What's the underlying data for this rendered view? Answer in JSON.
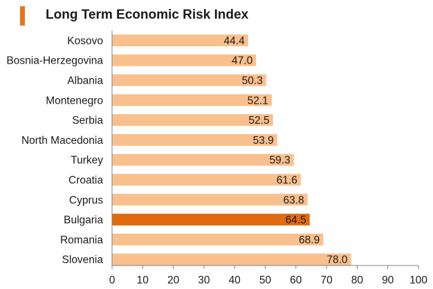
{
  "title": "Long Term Economic Risk Index",
  "colors": {
    "title_marker": "#e6731e",
    "bar": "#f9c08d",
    "highlight_bar": "#e26b0e",
    "axis": "#808080",
    "text": "#1a1a1a"
  },
  "chart_data": {
    "type": "bar",
    "orientation": "horizontal",
    "title": "Long Term Economic Risk Index",
    "categories": [
      "Kosovo",
      "Bosnia-Herzegovina",
      "Albania",
      "Montenegro",
      "Serbia",
      "North Macedonia",
      "Turkey",
      "Croatia",
      "Cyprus",
      "Bulgaria",
      "Romania",
      "Slovenia"
    ],
    "values": [
      44.4,
      47.0,
      50.3,
      52.1,
      52.5,
      53.9,
      59.3,
      61.6,
      63.8,
      64.5,
      68.9,
      78.0
    ],
    "value_labels": [
      "44.4",
      "47.0",
      "50.3",
      "52.1",
      "52.5",
      "53.9",
      "59.3",
      "61.6",
      "63.8",
      "64.5",
      "68.9",
      "78.0"
    ],
    "highlight": "Bulgaria",
    "xlim": [
      0,
      100
    ],
    "xticks": [
      "0",
      "10",
      "20",
      "30",
      "40",
      "50",
      "60",
      "70",
      "80",
      "90",
      "100"
    ],
    "grid": false,
    "legend": "none"
  }
}
